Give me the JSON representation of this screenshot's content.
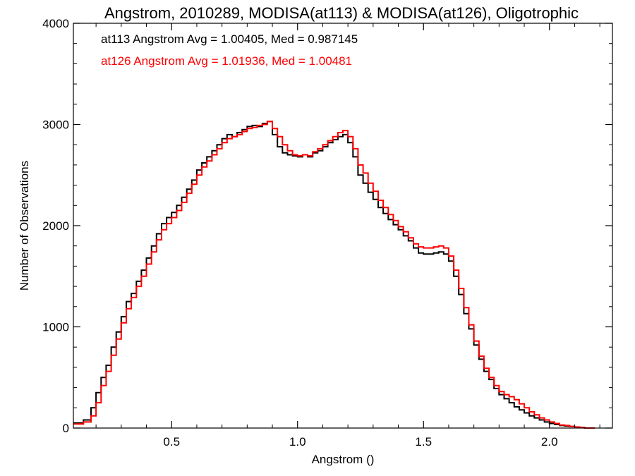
{
  "chart_data": {
    "type": "line",
    "title": "Angstrom, 2010289, MODISA(at113) & MODISA(at126), Oligotrophic",
    "xlabel": "Angstrom ()",
    "ylabel": "Number of Observations",
    "xlim": [
      0.11,
      2.25
    ],
    "ylim": [
      0,
      4000
    ],
    "xticks": [
      0.5,
      1.0,
      1.5,
      2.0
    ],
    "xtick_labels": [
      "0.5",
      "1.0",
      "1.5",
      "2.0"
    ],
    "yticks": [
      0,
      1000,
      2000,
      3000,
      4000
    ],
    "ytick_labels": [
      "0",
      "1000",
      "2000",
      "3000",
      "4000"
    ],
    "legend_placement": "top-left",
    "grid": false,
    "step": "histogram",
    "annotations": [
      {
        "text": "at113 Angstrom Avg = 1.00405, Med = 0.987145",
        "color": "#000000"
      },
      {
        "text": "at126 Angstrom Avg = 1.01936, Med = 1.00481",
        "color": "#ff0000"
      }
    ],
    "series": [
      {
        "color": "#000000",
        "x": [
          0.11,
          0.15,
          0.18,
          0.2,
          0.22,
          0.24,
          0.26,
          0.28,
          0.3,
          0.32,
          0.34,
          0.36,
          0.38,
          0.4,
          0.42,
          0.44,
          0.46,
          0.48,
          0.5,
          0.52,
          0.54,
          0.56,
          0.58,
          0.6,
          0.62,
          0.64,
          0.66,
          0.68,
          0.7,
          0.72,
          0.74,
          0.76,
          0.78,
          0.8,
          0.82,
          0.84,
          0.86,
          0.88,
          0.9,
          0.92,
          0.94,
          0.96,
          0.98,
          1.0,
          1.02,
          1.04,
          1.06,
          1.08,
          1.1,
          1.12,
          1.14,
          1.16,
          1.18,
          1.2,
          1.22,
          1.24,
          1.26,
          1.28,
          1.3,
          1.32,
          1.34,
          1.36,
          1.38,
          1.4,
          1.42,
          1.44,
          1.46,
          1.48,
          1.5,
          1.52,
          1.54,
          1.56,
          1.58,
          1.6,
          1.62,
          1.64,
          1.66,
          1.68,
          1.7,
          1.72,
          1.74,
          1.76,
          1.78,
          1.8,
          1.82,
          1.84,
          1.86,
          1.88,
          1.9,
          1.92,
          1.94,
          1.96,
          1.98,
          2.0,
          2.02,
          2.04,
          2.06,
          2.08,
          2.1,
          2.12,
          2.14
        ],
        "y": [
          50,
          80,
          200,
          350,
          500,
          620,
          800,
          950,
          1100,
          1250,
          1330,
          1450,
          1560,
          1680,
          1800,
          1920,
          2020,
          2080,
          2130,
          2200,
          2280,
          2360,
          2450,
          2550,
          2620,
          2680,
          2740,
          2800,
          2860,
          2900,
          2880,
          2920,
          2950,
          2980,
          2990,
          2980,
          3010,
          3030,
          2900,
          2780,
          2720,
          2700,
          2690,
          2680,
          2700,
          2680,
          2720,
          2740,
          2780,
          2820,
          2850,
          2880,
          2900,
          2820,
          2680,
          2500,
          2420,
          2330,
          2260,
          2180,
          2120,
          2060,
          2010,
          1960,
          1900,
          1850,
          1780,
          1730,
          1720,
          1720,
          1730,
          1740,
          1720,
          1650,
          1500,
          1320,
          1130,
          980,
          820,
          680,
          560,
          480,
          390,
          330,
          290,
          250,
          210,
          180,
          150,
          120,
          100,
          80,
          60,
          45,
          35,
          25,
          20,
          15,
          10,
          5,
          0
        ]
      },
      {
        "color": "#ff0000",
        "x": [
          0.11,
          0.15,
          0.18,
          0.2,
          0.22,
          0.24,
          0.26,
          0.28,
          0.3,
          0.32,
          0.34,
          0.36,
          0.38,
          0.4,
          0.42,
          0.44,
          0.46,
          0.48,
          0.5,
          0.52,
          0.54,
          0.56,
          0.58,
          0.6,
          0.62,
          0.64,
          0.66,
          0.68,
          0.7,
          0.72,
          0.74,
          0.76,
          0.78,
          0.8,
          0.82,
          0.84,
          0.86,
          0.88,
          0.9,
          0.92,
          0.94,
          0.96,
          0.98,
          1.0,
          1.02,
          1.04,
          1.06,
          1.08,
          1.1,
          1.12,
          1.14,
          1.16,
          1.18,
          1.2,
          1.22,
          1.24,
          1.26,
          1.28,
          1.3,
          1.32,
          1.34,
          1.36,
          1.38,
          1.4,
          1.42,
          1.44,
          1.46,
          1.48,
          1.5,
          1.52,
          1.54,
          1.56,
          1.58,
          1.6,
          1.62,
          1.64,
          1.66,
          1.68,
          1.7,
          1.72,
          1.74,
          1.76,
          1.78,
          1.8,
          1.82,
          1.84,
          1.86,
          1.88,
          1.9,
          1.92,
          1.94,
          1.96,
          1.98,
          2.0,
          2.02,
          2.04,
          2.06,
          2.08,
          2.1,
          2.12,
          2.14,
          2.16
        ],
        "y": [
          40,
          60,
          120,
          250,
          420,
          560,
          720,
          880,
          1040,
          1180,
          1290,
          1400,
          1500,
          1620,
          1740,
          1860,
          1960,
          2020,
          2080,
          2150,
          2230,
          2320,
          2410,
          2500,
          2580,
          2640,
          2700,
          2760,
          2820,
          2860,
          2880,
          2900,
          2930,
          2960,
          2970,
          2990,
          3000,
          3030,
          2960,
          2880,
          2800,
          2740,
          2700,
          2690,
          2700,
          2690,
          2730,
          2760,
          2800,
          2840,
          2880,
          2920,
          2940,
          2880,
          2760,
          2600,
          2520,
          2420,
          2340,
          2250,
          2180,
          2110,
          2050,
          1990,
          1940,
          1880,
          1820,
          1790,
          1780,
          1780,
          1790,
          1800,
          1780,
          1700,
          1560,
          1380,
          1190,
          1020,
          860,
          710,
          590,
          500,
          420,
          360,
          330,
          310,
          280,
          240,
          200,
          160,
          130,
          100,
          80,
          60,
          45,
          30,
          25,
          15,
          10,
          5,
          0,
          0
        ]
      }
    ]
  }
}
